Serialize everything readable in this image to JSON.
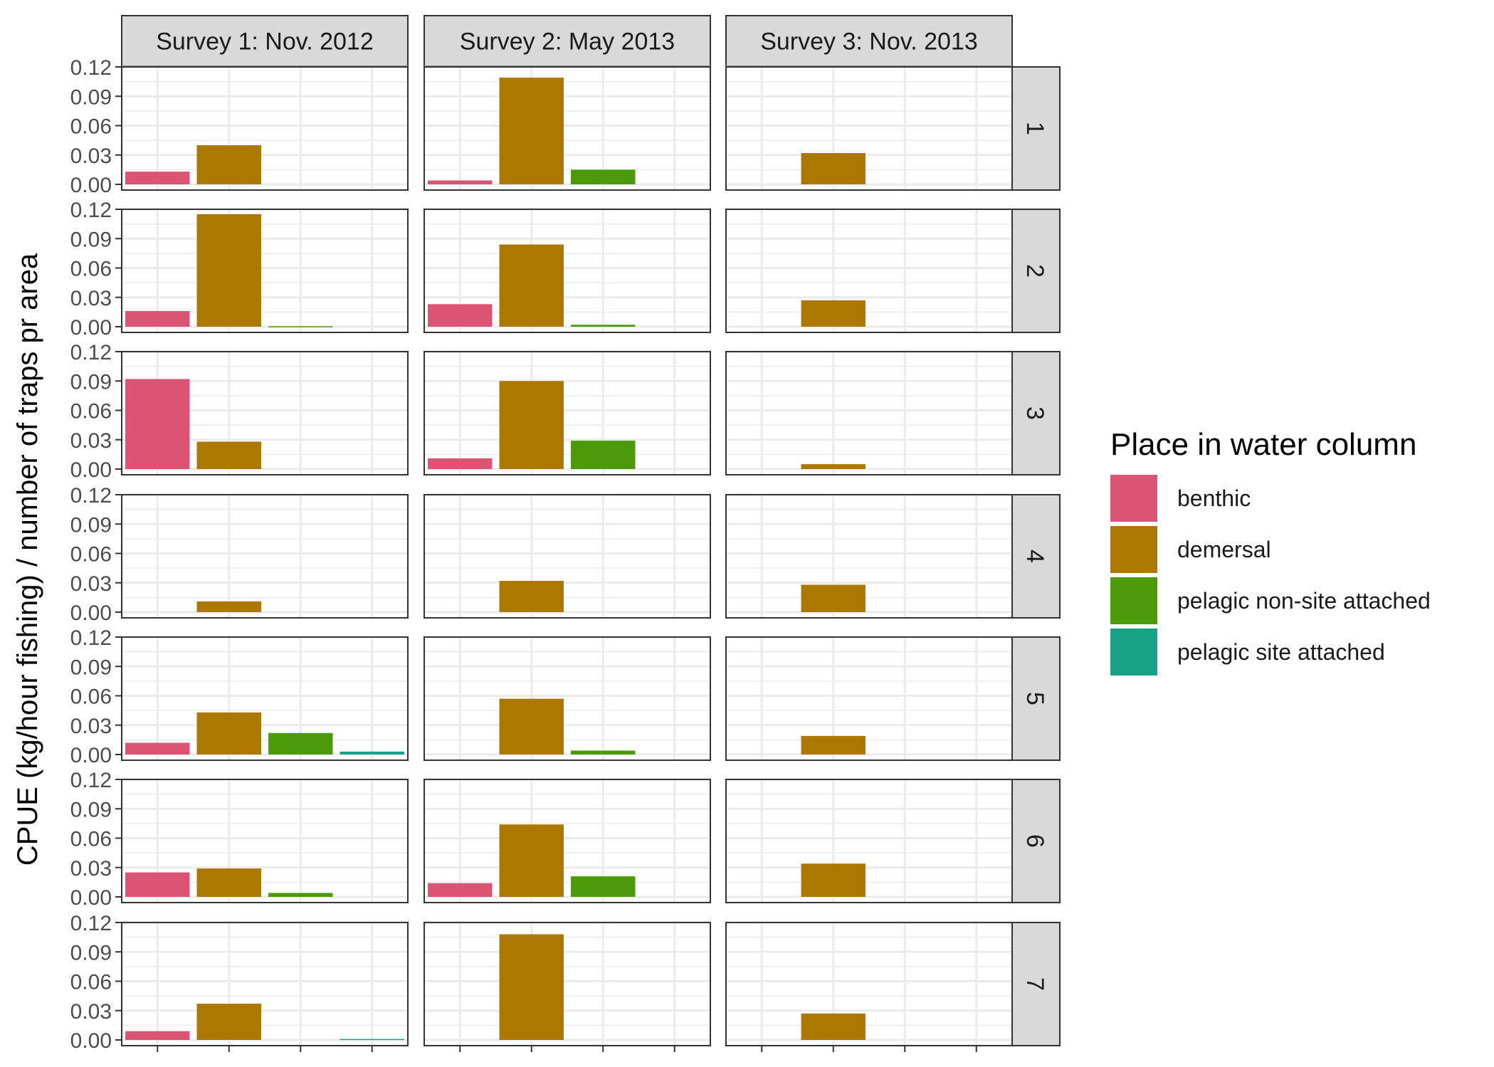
{
  "chart_data": {
    "type": "bar",
    "ylabel": "CPUE (kg/hour fishing) / number of traps pr area",
    "xlabel": "",
    "ylim": [
      0,
      0.12
    ],
    "yticks": [
      "0.00",
      "0.03",
      "0.06",
      "0.09",
      "0.12"
    ],
    "grid": true,
    "legend_position": "right",
    "columns": [
      "Survey 1: Nov. 2012",
      "Survey 2: May 2013",
      "Survey 3: Nov. 2013"
    ],
    "rows": [
      "1",
      "2",
      "3",
      "4",
      "5",
      "6",
      "7"
    ],
    "categories": [
      "benthic",
      "demersal",
      "pelagic non-site attached",
      "pelagic site attached"
    ],
    "legend": {
      "title": "Place in water column",
      "entries": [
        "benthic",
        "demersal",
        "pelagic non-site attached",
        "pelagic site attached"
      ]
    },
    "colors": {
      "benthic": "#D95573",
      "demersal": "#AD7800",
      "pelagic non-site attached": "#4A9A0A",
      "pelagic site attached": "#18A389"
    },
    "panels": [
      {
        "row": "1",
        "column": "Survey 1: Nov. 2012",
        "values": [
          0.013,
          0.04,
          0,
          0
        ]
      },
      {
        "row": "1",
        "column": "Survey 2: May 2013",
        "values": [
          0.004,
          0.109,
          0.015,
          0
        ]
      },
      {
        "row": "1",
        "column": "Survey 3: Nov. 2013",
        "values": [
          0,
          0.032,
          0,
          0
        ]
      },
      {
        "row": "2",
        "column": "Survey 1: Nov. 2012",
        "values": [
          0.016,
          0.115,
          0.0005,
          0
        ]
      },
      {
        "row": "2",
        "column": "Survey 2: May 2013",
        "values": [
          0.023,
          0.084,
          0.002,
          0
        ]
      },
      {
        "row": "2",
        "column": "Survey 3: Nov. 2013",
        "values": [
          0,
          0.027,
          0,
          0
        ]
      },
      {
        "row": "3",
        "column": "Survey 1: Nov. 2012",
        "values": [
          0.092,
          0.028,
          0,
          0
        ]
      },
      {
        "row": "3",
        "column": "Survey 2: May 2013",
        "values": [
          0.011,
          0.09,
          0.029,
          0
        ]
      },
      {
        "row": "3",
        "column": "Survey 3: Nov. 2013",
        "values": [
          0,
          0.005,
          0,
          0
        ]
      },
      {
        "row": "4",
        "column": "Survey 1: Nov. 2012",
        "values": [
          0,
          0.011,
          0,
          0
        ]
      },
      {
        "row": "4",
        "column": "Survey 2: May 2013",
        "values": [
          0,
          0.032,
          0,
          0
        ]
      },
      {
        "row": "4",
        "column": "Survey 3: Nov. 2013",
        "values": [
          0,
          0.028,
          0,
          0
        ]
      },
      {
        "row": "5",
        "column": "Survey 1: Nov. 2012",
        "values": [
          0.012,
          0.043,
          0.022,
          0.003
        ]
      },
      {
        "row": "5",
        "column": "Survey 2: May 2013",
        "values": [
          0,
          0.057,
          0.004,
          0
        ]
      },
      {
        "row": "5",
        "column": "Survey 3: Nov. 2013",
        "values": [
          0,
          0.019,
          0,
          0
        ]
      },
      {
        "row": "6",
        "column": "Survey 1: Nov. 2012",
        "values": [
          0.025,
          0.029,
          0.004,
          0
        ]
      },
      {
        "row": "6",
        "column": "Survey 2: May 2013",
        "values": [
          0.014,
          0.074,
          0.021,
          0
        ]
      },
      {
        "row": "6",
        "column": "Survey 3: Nov. 2013",
        "values": [
          0,
          0.034,
          0,
          0
        ]
      },
      {
        "row": "7",
        "column": "Survey 1: Nov. 2012",
        "values": [
          0.009,
          0.037,
          0,
          0.001
        ]
      },
      {
        "row": "7",
        "column": "Survey 2: May 2013",
        "values": [
          0,
          0.108,
          0,
          0
        ]
      },
      {
        "row": "7",
        "column": "Survey 3: Nov. 2013",
        "values": [
          0,
          0.027,
          0,
          0
        ]
      }
    ]
  }
}
